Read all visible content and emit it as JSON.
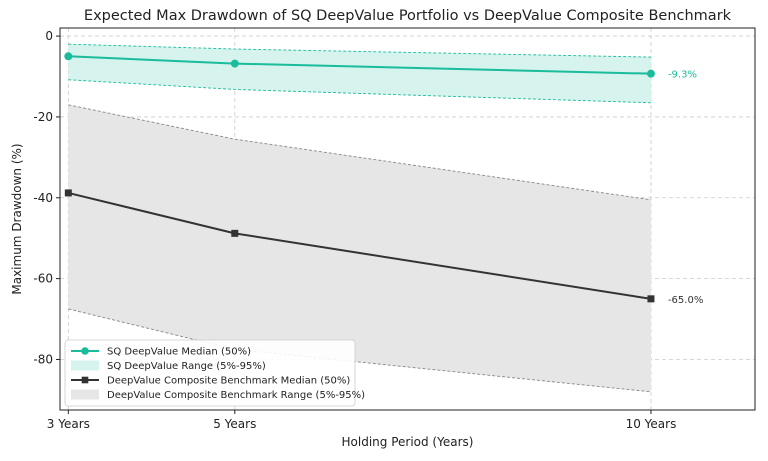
{
  "chart_data": {
    "type": "line",
    "title": "Expected Max Drawdown of SQ DeepValue Portfolio vs DeepValue Composite Benchmark",
    "xlabel": "Holding Period (Years)",
    "ylabel": "Maximum Drawdown (%)",
    "categories": [
      "3 Years",
      "5 Years",
      "10 Years"
    ],
    "x": [
      3,
      5,
      10
    ],
    "xlim": [
      2.9,
      11.25
    ],
    "ylim": [
      -92.5,
      2
    ],
    "yticks": [
      0,
      -20,
      -40,
      -60,
      -80
    ],
    "grid": true,
    "legend_position": "bottom-left",
    "series": [
      {
        "name": "SQ DeepValue Median (50%)",
        "values": [
          -5.0,
          -6.8,
          -9.3
        ],
        "color": "#1abc9c",
        "marker": "circle"
      },
      {
        "name": "DeepValue Composite Benchmark Median (50%)",
        "values": [
          -38.8,
          -48.8,
          -65.0
        ],
        "color": "#333333",
        "marker": "square"
      }
    ],
    "ranges": [
      {
        "name": "SQ DeepValue Range (5%-95%)",
        "upper": [
          -2.0,
          -3.2,
          -5.2
        ],
        "lower": [
          -10.8,
          -13.2,
          -16.5
        ],
        "fill": "#d6f3ee",
        "edge": "#1abc9c"
      },
      {
        "name": "DeepValue Composite Benchmark Range (5%-95%)",
        "upper": [
          -17.0,
          -25.5,
          -40.5
        ],
        "lower": [
          -67.5,
          -77.5,
          -88.0
        ],
        "fill": "#e6e6e6",
        "edge": "#888888"
      }
    ],
    "end_labels": [
      {
        "text": "-9.3%",
        "value": -9.3,
        "color": "#1abc9c"
      },
      {
        "text": "-65.0%",
        "value": -65.0,
        "color": "#333333"
      }
    ]
  }
}
